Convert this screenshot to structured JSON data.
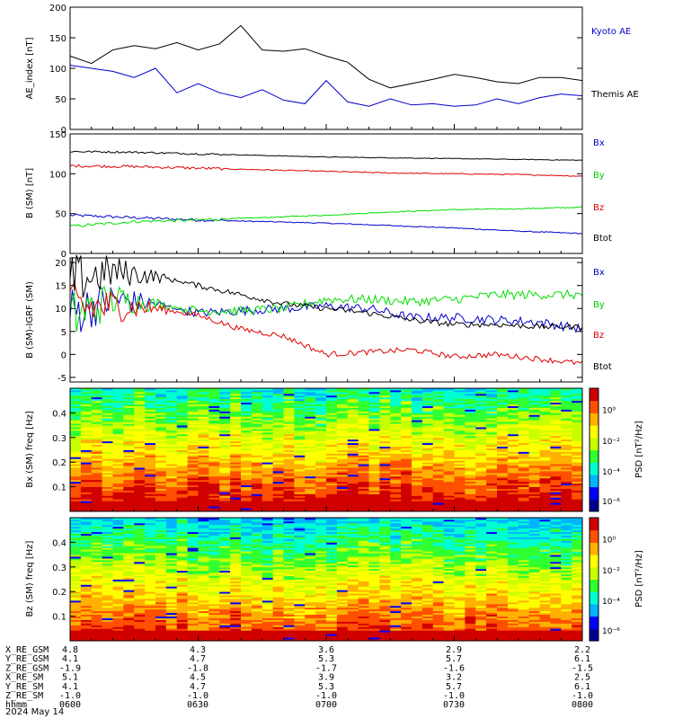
{
  "chart_data": [
    {
      "type": "line",
      "ylabel": "AE_index [nT]",
      "ylim": [
        0,
        200
      ],
      "yticks": [
        "0",
        "50",
        "100",
        "150",
        "200"
      ],
      "x": [
        "06:00",
        "06:05",
        "06:10",
        "06:15",
        "06:20",
        "06:25",
        "06:30",
        "06:35",
        "06:40",
        "06:45",
        "06:50",
        "06:55",
        "07:00",
        "07:05",
        "07:10",
        "07:15",
        "07:20",
        "07:25",
        "07:30",
        "07:35",
        "07:40",
        "07:45",
        "07:50",
        "07:55",
        "08:00"
      ],
      "series": [
        {
          "name": "Kyoto AE",
          "color": "#000000",
          "values": [
            120,
            108,
            130,
            137,
            132,
            142,
            130,
            140,
            170,
            130,
            128,
            132,
            120,
            110,
            82,
            68,
            75,
            82,
            90,
            85,
            78,
            75,
            85,
            85,
            80
          ]
        },
        {
          "name": "Themis AE",
          "color": "#0000cc",
          "values": [
            105,
            100,
            95,
            85,
            100,
            60,
            75,
            60,
            52,
            65,
            48,
            42,
            80,
            45,
            38,
            50,
            40,
            42,
            38,
            40,
            50,
            42,
            52,
            58,
            55
          ]
        }
      ]
    },
    {
      "type": "line",
      "ylabel": "B (SM) [nT]",
      "ylim": [
        0,
        150
      ],
      "yticks": [
        "0",
        "50",
        "100",
        "150"
      ],
      "x": [
        "06:00",
        "06:15",
        "06:30",
        "06:45",
        "07:00",
        "07:15",
        "07:30",
        "07:45",
        "08:00"
      ],
      "series": [
        {
          "name": "Bx",
          "color": "#0000cc",
          "values": [
            48,
            45,
            42,
            40,
            38,
            35,
            32,
            28,
            25
          ]
        },
        {
          "name": "By",
          "color": "#00dd00",
          "values": [
            34,
            40,
            42,
            45,
            48,
            52,
            55,
            56,
            58
          ]
        },
        {
          "name": "Bz",
          "color": "#dd0000",
          "values": [
            110,
            109,
            107,
            105,
            103,
            101,
            100,
            99,
            97
          ]
        },
        {
          "name": "Btot",
          "color": "#000000",
          "values": [
            128,
            127,
            125,
            123,
            121,
            120,
            119,
            118,
            117
          ]
        }
      ]
    },
    {
      "type": "line",
      "ylabel": "B (SM)-IGRF (SM)",
      "ylim": [
        -6,
        21
      ],
      "yticks": [
        "-5",
        "0",
        "5",
        "10",
        "15",
        "20"
      ],
      "x": [
        "06:00",
        "06:10",
        "06:20",
        "06:30",
        "06:40",
        "06:50",
        "07:00",
        "07:10",
        "07:20",
        "07:30",
        "07:40",
        "07:50",
        "08:00"
      ],
      "series": [
        {
          "name": "Bx",
          "color": "#0000cc",
          "values": [
            9,
            12,
            11,
            9,
            9.5,
            10,
            10.5,
            10,
            8,
            8,
            7.5,
            7,
            5.5
          ]
        },
        {
          "name": "By",
          "color": "#00dd00",
          "values": [
            8,
            12,
            11,
            9.5,
            9.5,
            10,
            12,
            12,
            11.5,
            12,
            13,
            13,
            13
          ]
        },
        {
          "name": "Bz",
          "color": "#dd0000",
          "values": [
            10,
            10.5,
            10,
            8.5,
            5.5,
            4,
            0,
            0.5,
            1,
            -0.5,
            0,
            -1,
            -2
          ]
        },
        {
          "name": "Btot",
          "color": "#000000",
          "values": [
            16,
            18,
            17,
            15,
            13,
            11,
            10,
            9,
            7.5,
            6.5,
            6.5,
            6,
            6
          ]
        }
      ]
    },
    {
      "type": "heatmap",
      "ylabel": "Bx (SM) freq [Hz]",
      "yticks": [
        "0.1",
        "0.2",
        "0.3",
        "0.4"
      ],
      "ylim": [
        0,
        0.5
      ],
      "colorbar_label": "PSD [nT²/Hz]",
      "colorbar_ticks": [
        "10⁰",
        "10⁻²",
        "10⁻⁴",
        "10⁻⁶"
      ]
    },
    {
      "type": "heatmap",
      "ylabel": "Bz (SM) freq [Hz]",
      "yticks": [
        "0.1",
        "0.2",
        "0.3",
        "0.4"
      ],
      "ylim": [
        0,
        0.5
      ],
      "colorbar_label": "PSD [nT²/Hz]",
      "colorbar_ticks": [
        "10⁰",
        "10⁻²",
        "10⁻⁴",
        "10⁻⁶"
      ]
    }
  ],
  "ephemeris": {
    "rows": [
      {
        "label": "X_RE_GSM",
        "values": [
          "4.8",
          "4.3",
          "3.6",
          "2.9",
          "2.2"
        ]
      },
      {
        "label": "Y_RE_GSM",
        "values": [
          "4.1",
          "4.7",
          "5.3",
          "5.7",
          "6.1"
        ]
      },
      {
        "label": "Z_RE_GSM",
        "values": [
          "-1.9",
          "-1.8",
          "-1.7",
          "-1.6",
          "-1.5"
        ]
      },
      {
        "label": "X_RE_SM",
        "values": [
          "5.1",
          "4.5",
          "3.9",
          "3.2",
          "2.5"
        ]
      },
      {
        "label": "Y_RE_SM",
        "values": [
          "4.1",
          "4.7",
          "5.3",
          "5.7",
          "6.1"
        ]
      },
      {
        "label": "Z_RE_SM",
        "values": [
          "-1.0",
          "-1.0",
          "-1.0",
          "-1.0",
          "-1.0"
        ]
      },
      {
        "label": "hhmm",
        "values": [
          "0600",
          "0630",
          "0700",
          "0730",
          "0800"
        ]
      }
    ],
    "date": "2024 May 14"
  },
  "colors": {
    "colormap": [
      "#000090",
      "#0000ff",
      "#00b4ff",
      "#00ffd0",
      "#30ff30",
      "#c8ff00",
      "#ffff00",
      "#ffb000",
      "#ff5000",
      "#d00000"
    ]
  }
}
